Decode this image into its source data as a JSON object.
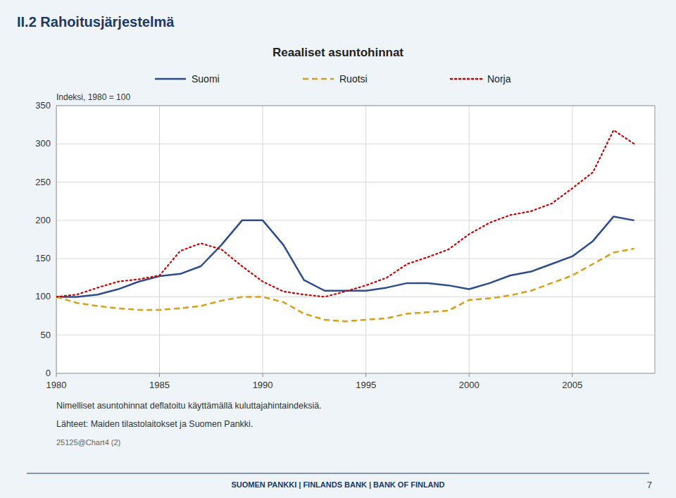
{
  "chart_data": {
    "type": "line",
    "header": "II.2 Rahoitusjärjestelmä",
    "title": "Reaaliset asuntohinnat",
    "ylabel": "Indeksi, 1980 = 100",
    "footnotes": [
      "Nimelliset asuntohinnat deflatoitu käyttämällä kuluttajahintaindeksiä.",
      "Lähteet: Maiden tilastolaitokset ja Suomen Pankki.",
      "25125@Chart4 (2)"
    ],
    "footer": "SUOMEN PANKKI  |  FINLANDS BANK  |  BANK OF FINLAND",
    "page_number": "7",
    "x": [
      1980,
      1981,
      1982,
      1983,
      1984,
      1985,
      1986,
      1987,
      1988,
      1989,
      1990,
      1991,
      1992,
      1993,
      1994,
      1995,
      1996,
      1997,
      1998,
      1999,
      2000,
      2001,
      2002,
      2003,
      2004,
      2005,
      2006,
      2007,
      2008
    ],
    "series": [
      {
        "name": "Suomi",
        "color": "#2d4d8e",
        "line_style": "solid",
        "values": [
          100,
          100,
          103,
          110,
          120,
          127,
          130,
          140,
          168,
          200,
          200,
          168,
          122,
          108,
          108,
          108,
          112,
          118,
          118,
          115,
          110,
          118,
          128,
          133,
          143,
          153,
          173,
          205,
          200
        ]
      },
      {
        "name": "Ruotsi",
        "color": "#d4a017",
        "line_style": "dashed",
        "values": [
          100,
          92,
          88,
          85,
          83,
          83,
          85,
          88,
          95,
          100,
          100,
          93,
          78,
          70,
          68,
          70,
          72,
          78,
          80,
          82,
          96,
          98,
          102,
          108,
          118,
          128,
          143,
          158,
          163
        ]
      },
      {
        "name": "Norja",
        "color": "#cc0000",
        "line_style": "dotted",
        "values": [
          100,
          103,
          112,
          120,
          123,
          128,
          160,
          170,
          162,
          140,
          120,
          107,
          103,
          100,
          107,
          115,
          125,
          143,
          152,
          162,
          182,
          197,
          207,
          212,
          222,
          242,
          263,
          318,
          300
        ]
      }
    ],
    "xlim": [
      1980,
      2009
    ],
    "xticks": [
      1980,
      1985,
      1990,
      1995,
      2000,
      2005
    ],
    "ylim": [
      0,
      350
    ],
    "yticks": [
      0,
      50,
      100,
      150,
      200,
      250,
      300,
      350
    ],
    "grid": true,
    "legend": "top"
  }
}
